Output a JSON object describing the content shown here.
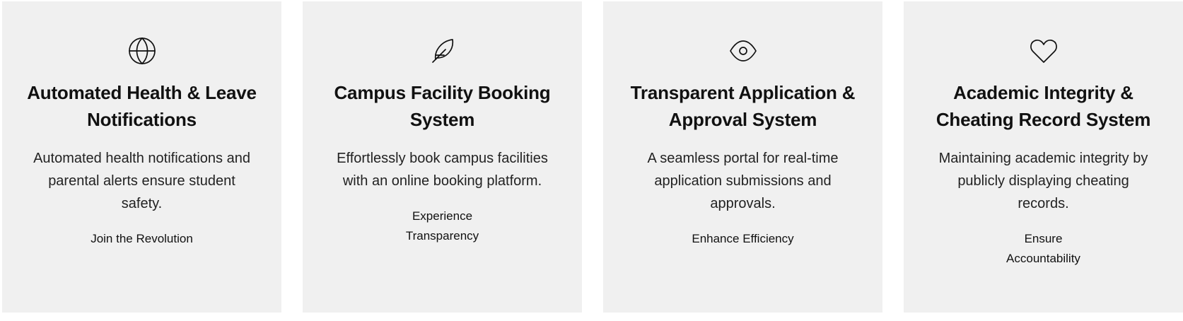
{
  "cards": [
    {
      "icon": "globe-icon",
      "title": "Automated Health & Leave Notifications",
      "description": "Automated health notifications and parental alerts ensure student safety.",
      "cta": "Join the Revolution"
    },
    {
      "icon": "feather-icon",
      "title": "Campus Facility Booking System",
      "description": "Effortlessly book campus facilities with an online booking platform.",
      "cta": "Experience Transparency"
    },
    {
      "icon": "eye-icon",
      "title": "Transparent Application & Approval System",
      "description": "A seamless portal for real-time application submissions and approvals.",
      "cta": "Enhance Efficiency"
    },
    {
      "icon": "heart-icon",
      "title": "Academic Integrity & Cheating Record System",
      "description": "Maintaining academic integrity by publicly displaying cheating records.",
      "cta": "Ensure Accountability"
    }
  ]
}
